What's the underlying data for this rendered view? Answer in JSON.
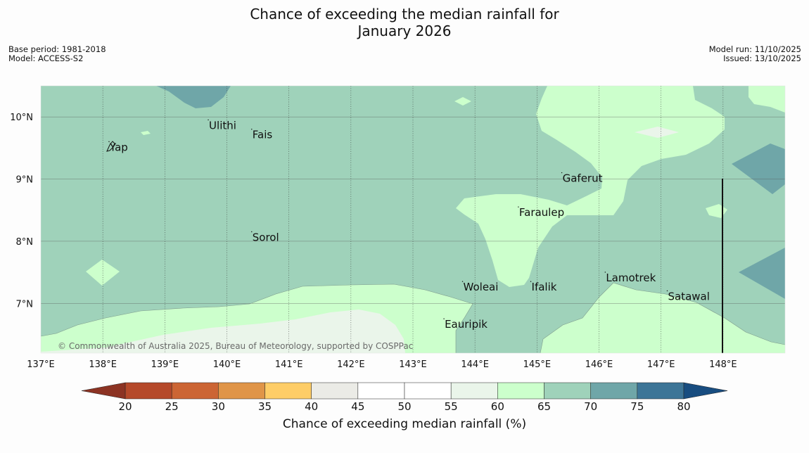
{
  "title": {
    "line1": "Chance of exceeding the median rainfall for",
    "line2": "January 2026"
  },
  "meta_left": {
    "base_period": "Base period: 1981-2018",
    "model": "Model: ACCESS-S2"
  },
  "meta_right": {
    "model_run": "Model run: 11/10/2025",
    "issued": "Issued: 13/10/2025"
  },
  "map": {
    "lon_range": [
      137,
      149
    ],
    "lat_range": [
      6.2,
      10.5
    ],
    "lon_ticks": [
      137,
      138,
      139,
      140,
      141,
      142,
      143,
      144,
      145,
      146,
      147,
      148
    ],
    "lon_tick_labels": [
      "137°E",
      "138°E",
      "139°E",
      "140°E",
      "141°E",
      "142°E",
      "143°E",
      "144°E",
      "145°E",
      "146°E",
      "147°E",
      "148°E"
    ],
    "lat_ticks": [
      7,
      8,
      9,
      10
    ],
    "lat_tick_labels": [
      "7°N",
      "8°N",
      "9°N",
      "10°N"
    ],
    "copyright": "© Commonwealth of Australia 2025, Bureau of Meteorology, supported by COSPPac",
    "places": [
      {
        "name": "Yap",
        "lon": 138.1,
        "lat": 9.5
      },
      {
        "name": "Ulithi",
        "lon": 139.7,
        "lat": 9.85
      },
      {
        "name": "Fais",
        "lon": 140.4,
        "lat": 9.7
      },
      {
        "name": "Gaferut",
        "lon": 145.4,
        "lat": 9.0
      },
      {
        "name": "Faraulep",
        "lon": 144.7,
        "lat": 8.45
      },
      {
        "name": "Sorol",
        "lon": 140.4,
        "lat": 8.05
      },
      {
        "name": "Lamotrek",
        "lon": 146.1,
        "lat": 7.4
      },
      {
        "name": "Woleai",
        "lon": 143.8,
        "lat": 7.25
      },
      {
        "name": "Ifalik",
        "lon": 144.9,
        "lat": 7.25
      },
      {
        "name": "Satawal",
        "lon": 147.1,
        "lat": 7.1
      },
      {
        "name": "Eauripik",
        "lon": 143.5,
        "lat": 6.65
      }
    ]
  },
  "colorbar": {
    "label": "Chance of exceeding median rainfall (%)",
    "ticks": [
      "20",
      "25",
      "30",
      "35",
      "40",
      "45",
      "50",
      "55",
      "60",
      "65",
      "70",
      "75",
      "80"
    ],
    "colors": [
      "#b5492a",
      "#cc6534",
      "#e09548",
      "#fecd67",
      "#ebebe6",
      "#ffffff",
      "#ffffff",
      "#eaf5ea",
      "#ccffcc",
      "#9fd2ba",
      "#6fa6a8",
      "#3d7597"
    ],
    "low_color": "#8c3323",
    "high_color": "#184d80"
  }
}
